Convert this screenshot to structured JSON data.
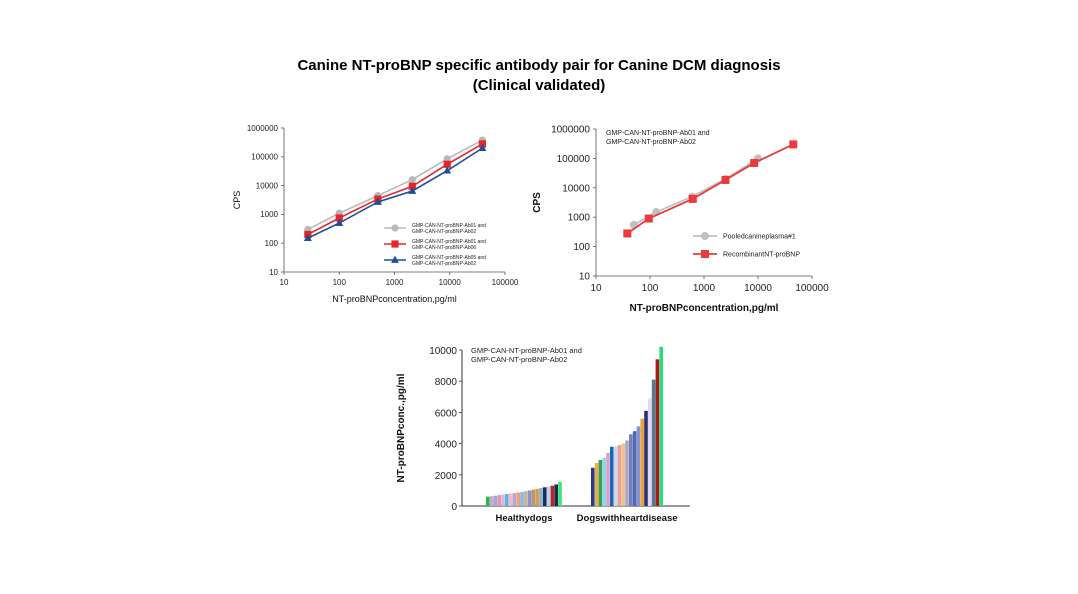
{
  "page": {
    "title_line1": "Canine NT-proBNP specific antibody pair for Canine DCM diagnosis",
    "title_line2": "(Clinical validated)"
  },
  "chart_data": [
    {
      "type": "line",
      "xscale": "log",
      "yscale": "log",
      "xlim": [
        10,
        100000
      ],
      "ylim": [
        10,
        1000000
      ],
      "xticks": [
        "10",
        "100",
        "1000",
        "10000",
        "100000"
      ],
      "yticks": [
        "10",
        "100",
        "1000",
        "10000",
        "100000",
        "1000000"
      ],
      "xlabel": "NT-proBNPconcentration,pg/ml",
      "ylabel": "CPS",
      "legend_position": "right",
      "grid": false,
      "series": [
        {
          "name": "GMP-CAN-NT-proBNP-Ab01 and GMP-CAN-NT-proBNP-Ab02",
          "name_lines": [
            "GMP-CAN-NT-proBNP-Ab01 and",
            "GMP-CAN-NT-proBNP-Ab02"
          ],
          "color": "#b8b8b8",
          "marker": "circle",
          "x": [
            27,
            100,
            500,
            2100,
            9000,
            39000
          ],
          "y": [
            300,
            1100,
            4500,
            16000,
            85000,
            380000
          ]
        },
        {
          "name": "GMP-CAN-NT-proBNP-Ab01 and GMP-CAN-NT-proBNP-Ab06",
          "name_lines": [
            "GMP-CAN-NT-proBNP-Ab01 and",
            "GMP-CAN-NT-proBNP-Ab06"
          ],
          "color": "#e8262a",
          "marker": "square",
          "x": [
            27,
            100,
            500,
            2100,
            9000,
            39000
          ],
          "y": [
            200,
            750,
            3400,
            9500,
            55000,
            280000
          ]
        },
        {
          "name": "GMP-CAN-NT-proBNP-Ab05 and GMP-CAN-NT-proBNP-Ab02",
          "name_lines": [
            "GMP-CAN-NT-proBNP-Ab05 and",
            "GMP-CAN-NT-proBNP-Ab02"
          ],
          "color": "#1d4e9b",
          "marker": "triangle",
          "x": [
            27,
            100,
            500,
            2100,
            9000,
            39000
          ],
          "y": [
            150,
            500,
            2700,
            6500,
            33000,
            200000
          ]
        }
      ]
    },
    {
      "type": "line",
      "xscale": "log",
      "yscale": "log",
      "xlim": [
        10,
        100000
      ],
      "ylim": [
        10,
        1000000
      ],
      "xticks": [
        "10",
        "100",
        "1000",
        "10000",
        "100000"
      ],
      "yticks": [
        "10",
        "100",
        "1000",
        "10000",
        "100000",
        "1000000"
      ],
      "xlabel": "NT-proBNPconcentration,pg/ml",
      "ylabel": "CPS",
      "annotation": [
        "GMP-CAN-NT-proBNP-Ab01 and",
        "GMP-CAN-NT-proBNP-Ab02"
      ],
      "legend_position": "bottom-right",
      "grid": false,
      "series": [
        {
          "name": "Pooledcanineplasma#1",
          "color": "#c0c0c0",
          "marker": "circle",
          "x": [
            50,
            130,
            600,
            2500,
            10000
          ],
          "y": [
            550,
            1500,
            5000,
            20000,
            100000
          ]
        },
        {
          "name": "RecombinantNT-proBNP",
          "color": "#ea3b3a",
          "marker": "square",
          "x": [
            38,
            95,
            620,
            2500,
            8500,
            45000
          ],
          "y": [
            280,
            900,
            4200,
            18500,
            70000,
            300000
          ]
        }
      ]
    },
    {
      "type": "bar",
      "ylim": [
        0,
        10000
      ],
      "yticks": [
        "0",
        "2000",
        "4000",
        "6000",
        "8000",
        "10000"
      ],
      "ylabel": "NT-proBNPconc.,pg/ml",
      "categories": [
        "Healthydogs",
        "Dogswithheartdisease"
      ],
      "annotation": [
        "GMP-CAN-NT-proBNP-Ab01 and",
        "GMP-CAN-NT-proBNP-Ab02"
      ],
      "grid": false,
      "groups": [
        {
          "category": "Healthydogs",
          "values": [
            600,
            630,
            660,
            700,
            740,
            770,
            800,
            830,
            860,
            900,
            950,
            1000,
            1050,
            1100,
            1150,
            1200,
            1250,
            1300,
            1380,
            1550
          ],
          "colors": [
            "#2eb34a",
            "#c9a7d6",
            "#a8a8d8",
            "#e09aa6",
            "#d7b7e0",
            "#56b6e8",
            "#f7b6c3",
            "#b4a7d6",
            "#e9a37b",
            "#8fb4d9",
            "#c2b69a",
            "#9a8fc4",
            "#a79c86",
            "#e79a3b",
            "#7fb3d5",
            "#1a2b5c",
            "#b9d3ee",
            "#b4262c",
            "#1f2a44",
            "#3ee37a"
          ]
        },
        {
          "category": "Dogswithheartdisease",
          "values": [
            2450,
            2750,
            2950,
            3100,
            3400,
            3800,
            3800,
            3900,
            4000,
            4200,
            4600,
            4800,
            5100,
            5600,
            6100,
            6900,
            8100,
            9400,
            10200
          ],
          "colors": [
            "#243c8f",
            "#e3b04b",
            "#3d9e4f",
            "#8fd6e8",
            "#d9a0c8",
            "#1c66b8",
            "#cfd8e8",
            "#e8a0a0",
            "#f2c08a",
            "#a6a6cc",
            "#7c7cb8",
            "#4a6fb0",
            "#8a8fd6",
            "#e6a23c",
            "#2a2f6e",
            "#e6d5ee",
            "#4f7d94",
            "#b0151d",
            "#21e07c"
          ]
        }
      ]
    }
  ]
}
